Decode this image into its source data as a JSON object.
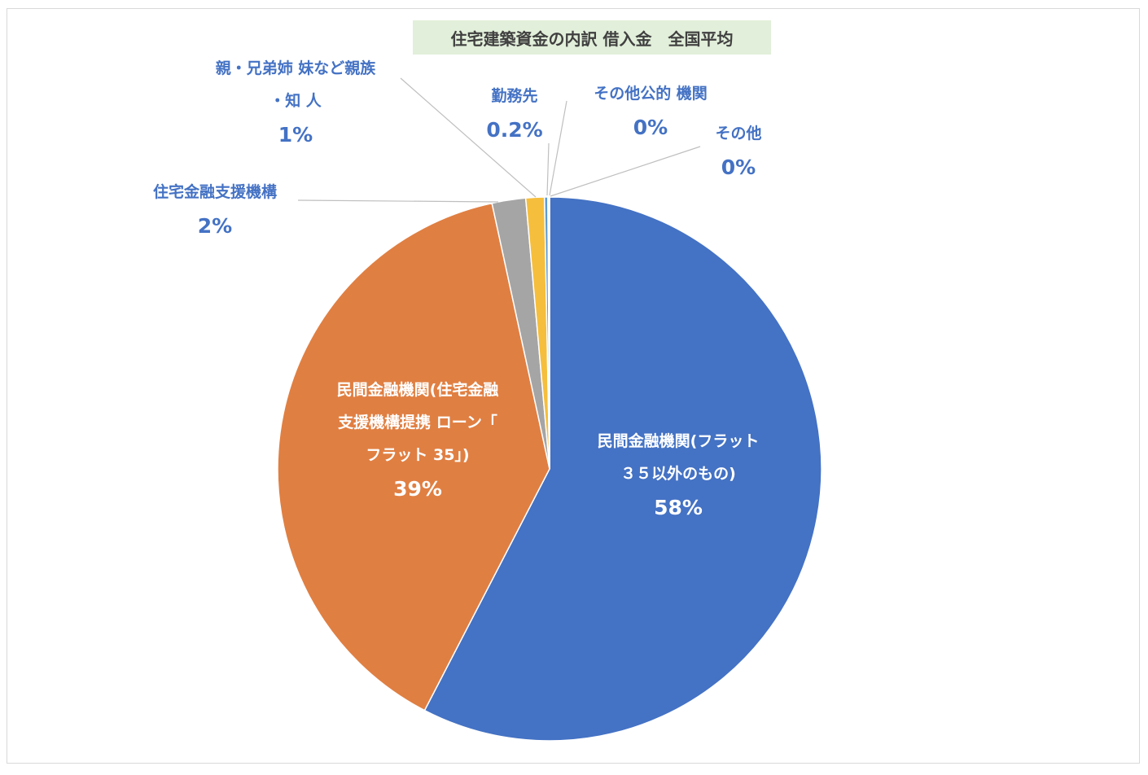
{
  "chart_data": {
    "type": "pie",
    "title": "住宅建築資金の内訳 借入金　全国平均",
    "slices": [
      {
        "label_lines": [
          "民間金融機関(フラット",
          "３５以外のもの)"
        ],
        "pct_label": "58%",
        "value": 57.6,
        "color": "#4472c4"
      },
      {
        "label_lines": [
          "民間金融機関(住宅金融",
          "支援機構提携 ローン「",
          "フラット 35」)"
        ],
        "pct_label": "39%",
        "value": 39.0,
        "color": "#e07f42"
      },
      {
        "label_lines": [
          "住宅金融支援機構"
        ],
        "pct_label": "2%",
        "value": 2.0,
        "color": "#a5a5a5"
      },
      {
        "label_lines": [
          "親・兄弟姉 妹など親族",
          "・知 人"
        ],
        "pct_label": "1%",
        "value": 1.1,
        "color": "#f5be3c"
      },
      {
        "label_lines": [
          "勤務先"
        ],
        "pct_label": "0.2%",
        "value": 0.2,
        "color": "#5b9bd5"
      },
      {
        "label_lines": [
          "その他公的 機関"
        ],
        "pct_label": "0%",
        "value": 0.05,
        "color": "#70ad47"
      },
      {
        "label_lines": [
          "その他"
        ],
        "pct_label": "0%",
        "value": 0.05,
        "color": "#264478"
      }
    ]
  }
}
